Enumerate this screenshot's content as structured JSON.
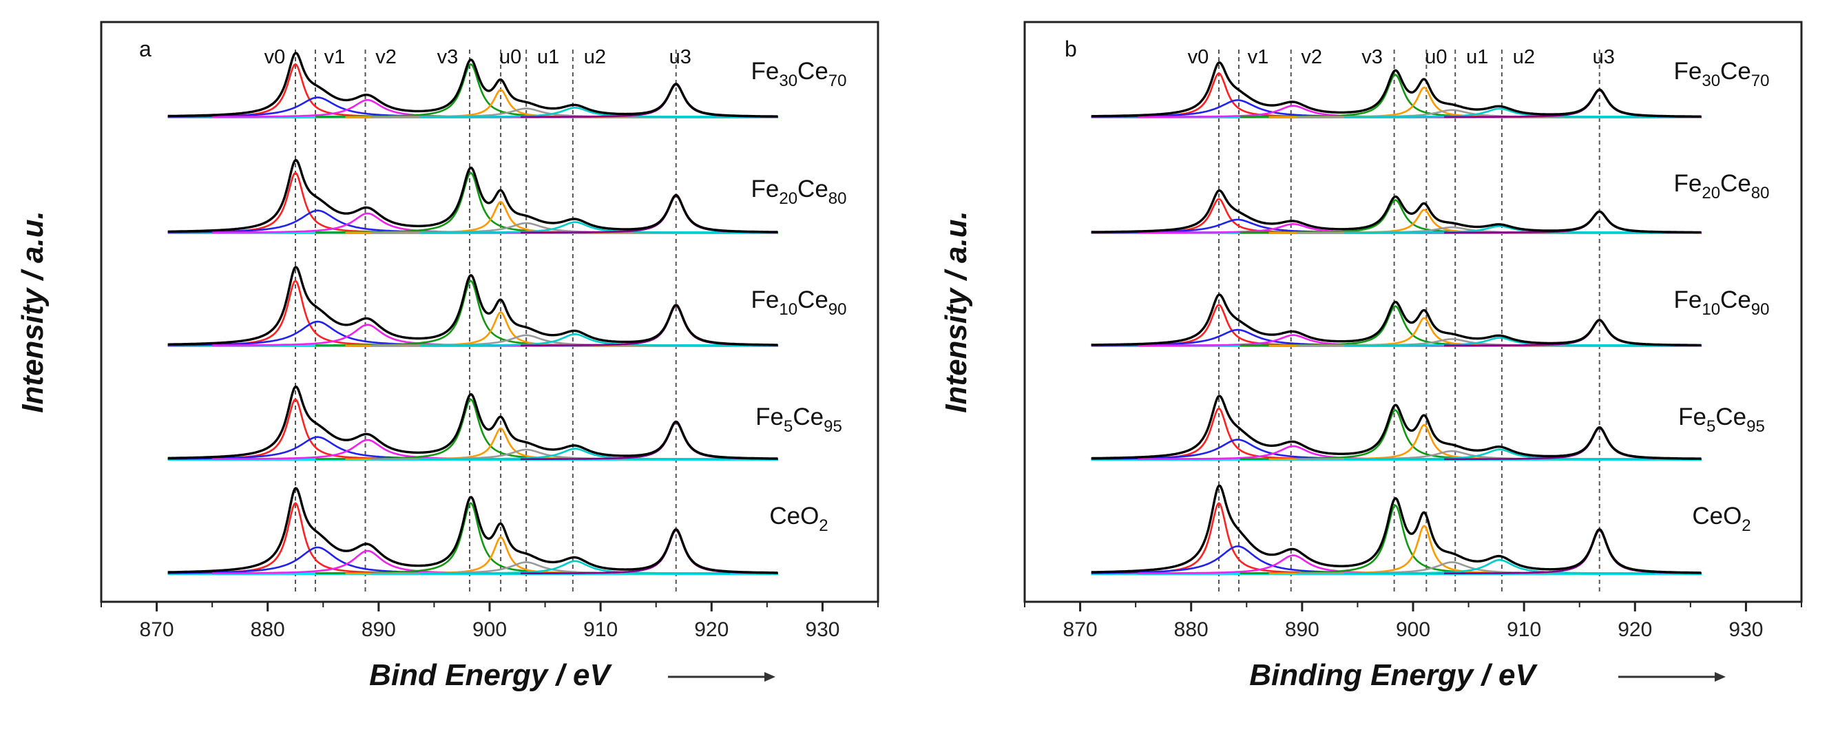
{
  "chart_data": [
    {
      "type": "line",
      "panel_label": "a",
      "xlabel": "Bind Energy / eV",
      "ylabel": "Intensity / a.u.",
      "xlim": [
        865,
        935
      ],
      "xticks": [
        870,
        880,
        890,
        900,
        910,
        920,
        930
      ],
      "plot_range": [
        871,
        926
      ],
      "grid": false,
      "peak_labels": [
        {
          "label": "v0",
          "position": 882.5
        },
        {
          "label": "v1",
          "position": 884.3
        },
        {
          "label": "v2",
          "position": 888.8
        },
        {
          "label": "v3",
          "position": 898.2
        },
        {
          "label": "u0",
          "position": 901.0
        },
        {
          "label": "u1",
          "position": 903.3
        },
        {
          "label": "u2",
          "position": 907.5
        },
        {
          "label": "u3",
          "position": 916.8
        }
      ],
      "series": [
        {
          "name": "Fe30Ce70",
          "label_main": "Fe",
          "sub1": "30",
          "label_mid": "Ce",
          "sub2": "70",
          "scale": 0.75
        },
        {
          "name": "Fe20Ce80",
          "label_main": "Fe",
          "sub1": "20",
          "label_mid": "Ce",
          "sub2": "80",
          "scale": 0.85
        },
        {
          "name": "Fe10Ce90",
          "label_main": "Fe",
          "sub1": "10",
          "label_mid": "Ce",
          "sub2": "90",
          "scale": 0.92
        },
        {
          "name": "Fe5Ce95",
          "label_main": "Fe",
          "sub1": "5",
          "label_mid": "Ce",
          "sub2": "95",
          "scale": 0.85
        },
        {
          "name": "CeO2",
          "label_main": "CeO",
          "sub1": "2",
          "label_mid": "",
          "sub2": "",
          "scale": 1.0
        }
      ],
      "components": [
        {
          "name": "v0",
          "center": 882.5,
          "fwhm": 1.8,
          "height": 0.62,
          "color": "#ff2020"
        },
        {
          "name": "v1",
          "center": 884.5,
          "fwhm": 4.0,
          "height": 0.23,
          "color": "#2222ee"
        },
        {
          "name": "v2",
          "center": 889.0,
          "fwhm": 3.2,
          "height": 0.2,
          "color": "#ee22ee"
        },
        {
          "name": "v3",
          "center": 898.3,
          "fwhm": 1.9,
          "height": 0.62,
          "color": "#119911"
        },
        {
          "name": "u0",
          "center": 901.0,
          "fwhm": 1.6,
          "height": 0.32,
          "color": "#ff9900"
        },
        {
          "name": "u1",
          "center": 903.3,
          "fwhm": 3.5,
          "height": 0.1,
          "color": "#999999"
        },
        {
          "name": "u2",
          "center": 907.7,
          "fwhm": 3.0,
          "height": 0.11,
          "color": "#00cccc"
        },
        {
          "name": "u3",
          "center": 916.8,
          "fwhm": 1.8,
          "height": 0.38,
          "color": "#880088"
        }
      ],
      "envelope_color": "#000000",
      "baseline_color": "#00e5ee"
    },
    {
      "type": "line",
      "panel_label": "b",
      "xlabel": "Binding Energy / eV",
      "ylabel": "Intensity / a.u.",
      "xlim": [
        865,
        935
      ],
      "xticks": [
        870,
        880,
        890,
        900,
        910,
        920,
        930
      ],
      "plot_range": [
        871,
        926
      ],
      "grid": false,
      "peak_labels": [
        {
          "label": "v0",
          "position": 882.5
        },
        {
          "label": "v1",
          "position": 884.3
        },
        {
          "label": "v2",
          "position": 889.0
        },
        {
          "label": "v3",
          "position": 898.3
        },
        {
          "label": "u0",
          "position": 901.2
        },
        {
          "label": "u1",
          "position": 903.8
        },
        {
          "label": "u2",
          "position": 908.0
        },
        {
          "label": "u3",
          "position": 916.8
        }
      ],
      "series": [
        {
          "name": "Fe30Ce70",
          "label_main": "Fe",
          "sub1": "30",
          "label_mid": "Ce",
          "sub2": "70",
          "scale": 0.62
        },
        {
          "name": "Fe20Ce80",
          "label_main": "Fe",
          "sub1": "20",
          "label_mid": "Ce",
          "sub2": "80",
          "scale": 0.48
        },
        {
          "name": "Fe10Ce90",
          "label_main": "Fe",
          "sub1": "10",
          "label_mid": "Ce",
          "sub2": "90",
          "scale": 0.58
        },
        {
          "name": "Fe5Ce95",
          "label_main": "Fe",
          "sub1": "5",
          "label_mid": "Ce",
          "sub2": "95",
          "scale": 0.72
        },
        {
          "name": "CeO2",
          "label_main": "CeO",
          "sub1": "2",
          "label_mid": "",
          "sub2": "",
          "scale": 1.0
        }
      ],
      "components": [
        {
          "name": "v0",
          "center": 882.5,
          "fwhm": 1.8,
          "height": 0.62,
          "color": "#ff2020"
        },
        {
          "name": "v1",
          "center": 884.2,
          "fwhm": 4.0,
          "height": 0.24,
          "color": "#2222ee"
        },
        {
          "name": "v2",
          "center": 889.2,
          "fwhm": 3.2,
          "height": 0.16,
          "color": "#ee22ee"
        },
        {
          "name": "v3",
          "center": 898.4,
          "fwhm": 1.9,
          "height": 0.6,
          "color": "#119911"
        },
        {
          "name": "u0",
          "center": 901.0,
          "fwhm": 1.6,
          "height": 0.42,
          "color": "#ff9900"
        },
        {
          "name": "u1",
          "center": 903.5,
          "fwhm": 3.5,
          "height": 0.1,
          "color": "#999999"
        },
        {
          "name": "u2",
          "center": 907.8,
          "fwhm": 3.0,
          "height": 0.12,
          "color": "#00cccc"
        },
        {
          "name": "u3",
          "center": 916.8,
          "fwhm": 1.8,
          "height": 0.38,
          "color": "#880088"
        }
      ],
      "envelope_color": "#000000",
      "baseline_color": "#00e5ee"
    }
  ]
}
